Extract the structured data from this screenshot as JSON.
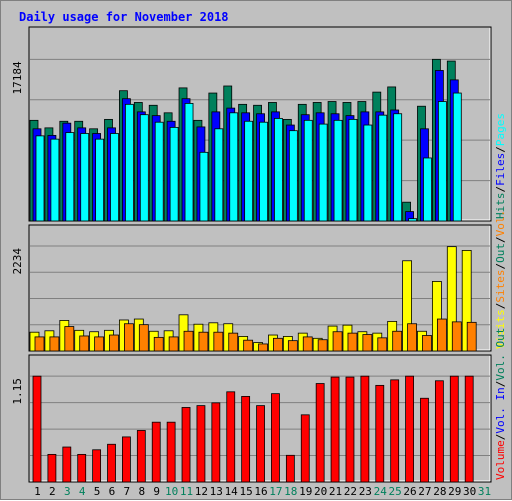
{
  "colors": {
    "hits": "#00805c",
    "files": "#0000ff",
    "pages": "#00ffff",
    "visits": "#ffff00",
    "sites": "#ff8000",
    "kbytes": "#ff0000",
    "title": "#0000ff",
    "weekend_label": "#00805c",
    "weekday_label": "#000000",
    "panel_bg": "#c0c0c0",
    "grid": "#808080"
  },
  "chart_data": {
    "type": "bar",
    "title": "Daily usage for November 2018",
    "categories": [
      "1",
      "2",
      "3",
      "4",
      "5",
      "6",
      "7",
      "8",
      "9",
      "10",
      "11",
      "12",
      "13",
      "14",
      "15",
      "16",
      "17",
      "18",
      "19",
      "20",
      "21",
      "22",
      "23",
      "24",
      "25",
      "26",
      "27",
      "28",
      "29",
      "30",
      "31"
    ],
    "weekend_days": [
      "3",
      "4",
      "10",
      "11",
      "17",
      "18",
      "24",
      "25",
      "31"
    ],
    "panels": [
      {
        "id": "hits-files-pages",
        "max_label": "17184",
        "ymax": 17184,
        "legend": [
          {
            "text": "Hits",
            "color_key": "hits"
          },
          {
            "sep": "/"
          },
          {
            "text": "Files",
            "color_key": "files"
          },
          {
            "sep": "/"
          },
          {
            "text": "Pages",
            "color_key": "pages"
          }
        ],
        "series": [
          {
            "name": "Hits",
            "color_key": "hits",
            "values": [
              10700,
              9900,
              10600,
              10600,
              9800,
              10800,
              13850,
              12600,
              12300,
              11500,
              14150,
              10700,
              13600,
              14350,
              12400,
              12300,
              12600,
              10800,
              12400,
              12600,
              12700,
              12600,
              12700,
              13700,
              14250,
              2000,
              12200,
              18000,
              17000,
              0,
              0
            ]
          },
          {
            "name": "Files",
            "color_key": "files",
            "values": [
              9800,
              9100,
              10400,
              9900,
              9300,
              9900,
              13000,
              11600,
              11200,
              10600,
              13000,
              10000,
              11600,
              12000,
              11500,
              11400,
              11600,
              10200,
              11300,
              11500,
              11400,
              11200,
              11600,
              11600,
              11800,
              1000,
              9800,
              16000,
              15000,
              0,
              0
            ]
          },
          {
            "name": "Pages",
            "color_key": "pages",
            "values": [
              9050,
              8700,
              9400,
              9300,
              8700,
              9300,
              12400,
              11300,
              10500,
              9950,
              12500,
              7300,
              9800,
              11500,
              10600,
              10500,
              10900,
              9600,
              10700,
              10300,
              10700,
              10800,
              10200,
              11250,
              11400,
              250,
              6700,
              12700,
              13600,
              0,
              0
            ]
          }
        ]
      },
      {
        "id": "visits-sites",
        "max_label": "2234",
        "ymax": 2234,
        "legend": [
          {
            "text": "Visits",
            "color_key": "visits"
          },
          {
            "sep": "/"
          },
          {
            "text": "Sites",
            "color_key": "sites"
          },
          {
            "sep": "/"
          },
          {
            "text": "Out",
            "color_key": "hits"
          },
          {
            "sep": "/"
          },
          {
            "text": "Vol.",
            "color_key": "sites"
          }
        ],
        "series": [
          {
            "name": "Visits",
            "color_key": "visits",
            "values": [
              400,
              430,
              650,
              440,
              410,
              440,
              660,
              680,
              420,
              430,
              770,
              570,
              600,
              580,
              310,
              180,
              340,
              310,
              380,
              270,
              530,
              550,
              410,
              380,
              630,
              1920,
              420,
              1480,
              2220,
              2140,
              0
            ]
          },
          {
            "name": "Sites",
            "color_key": "sites",
            "values": [
              300,
              300,
              520,
              320,
              300,
              340,
              580,
              560,
              290,
              300,
              420,
              400,
              400,
              380,
              230,
              150,
              270,
              220,
              300,
              240,
              410,
              380,
              350,
              280,
              420,
              580,
              330,
              680,
              620,
              610,
              0
            ]
          }
        ]
      },
      {
        "id": "kbytes",
        "max_label": "1.15",
        "ymax": 1.15,
        "legend": [
          {
            "text": "Volume",
            "color_key": "kbytes"
          },
          {
            "sep": "/"
          },
          {
            "text": "Vol. In",
            "color_key": "files"
          },
          {
            "sep": "/"
          },
          {
            "text": "Vol. Out",
            "color_key": "hits"
          }
        ],
        "series": [
          {
            "name": "Volume",
            "color_key": "kbytes",
            "values": [
              1.15,
              0.3,
              0.38,
              0.3,
              0.35,
              0.41,
              0.49,
              0.56,
              0.65,
              0.65,
              0.81,
              0.83,
              0.86,
              0.98,
              0.93,
              0.83,
              0.96,
              0.29,
              0.73,
              1.07,
              1.14,
              1.14,
              1.18,
              1.05,
              1.11,
              1.2,
              0.91,
              1.1,
              1.2,
              1.18,
              0
            ]
          }
        ]
      }
    ]
  }
}
